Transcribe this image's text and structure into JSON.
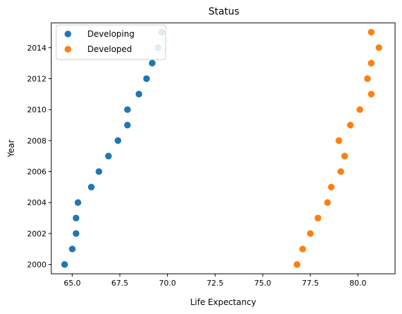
{
  "chart_data": {
    "type": "scatter",
    "title": "Status",
    "xlabel": "Life Expectancy",
    "ylabel": "Year",
    "xlim": [
      63.9,
      81.95
    ],
    "ylim": [
      1999.4,
      2015.6
    ],
    "xticks": [
      65.0,
      67.5,
      70.0,
      72.5,
      75.0,
      77.5,
      80.0
    ],
    "xtick_labels": [
      "65.0",
      "67.5",
      "70.0",
      "72.5",
      "75.0",
      "77.5",
      "80.0"
    ],
    "yticks": [
      2000,
      2002,
      2004,
      2006,
      2008,
      2010,
      2012,
      2014
    ],
    "ytick_labels": [
      "2000",
      "2002",
      "2004",
      "2006",
      "2008",
      "2010",
      "2012",
      "2014"
    ],
    "grid": false,
    "legend_position": "top-left",
    "series": [
      {
        "name": "Developing",
        "color": "#1f77b4",
        "points": [
          {
            "x": 64.6,
            "y": 2000
          },
          {
            "x": 65.0,
            "y": 2001
          },
          {
            "x": 65.2,
            "y": 2002
          },
          {
            "x": 65.2,
            "y": 2003
          },
          {
            "x": 65.3,
            "y": 2004
          },
          {
            "x": 66.0,
            "y": 2005
          },
          {
            "x": 66.4,
            "y": 2006
          },
          {
            "x": 66.9,
            "y": 2007
          },
          {
            "x": 67.4,
            "y": 2008
          },
          {
            "x": 67.9,
            "y": 2009
          },
          {
            "x": 67.9,
            "y": 2010
          },
          {
            "x": 68.5,
            "y": 2011
          },
          {
            "x": 68.9,
            "y": 2012
          },
          {
            "x": 69.2,
            "y": 2013
          },
          {
            "x": 69.5,
            "y": 2014
          },
          {
            "x": 69.7,
            "y": 2015
          }
        ]
      },
      {
        "name": "Developed",
        "color": "#ff7f0e",
        "points": [
          {
            "x": 76.8,
            "y": 2000
          },
          {
            "x": 77.1,
            "y": 2001
          },
          {
            "x": 77.5,
            "y": 2002
          },
          {
            "x": 77.9,
            "y": 2003
          },
          {
            "x": 78.4,
            "y": 2004
          },
          {
            "x": 78.6,
            "y": 2005
          },
          {
            "x": 79.1,
            "y": 2006
          },
          {
            "x": 79.3,
            "y": 2007
          },
          {
            "x": 79.0,
            "y": 2008
          },
          {
            "x": 79.6,
            "y": 2009
          },
          {
            "x": 80.1,
            "y": 2010
          },
          {
            "x": 80.7,
            "y": 2011
          },
          {
            "x": 80.5,
            "y": 2012
          },
          {
            "x": 80.7,
            "y": 2013
          },
          {
            "x": 81.1,
            "y": 2014
          },
          {
            "x": 80.7,
            "y": 2015
          }
        ]
      }
    ]
  }
}
